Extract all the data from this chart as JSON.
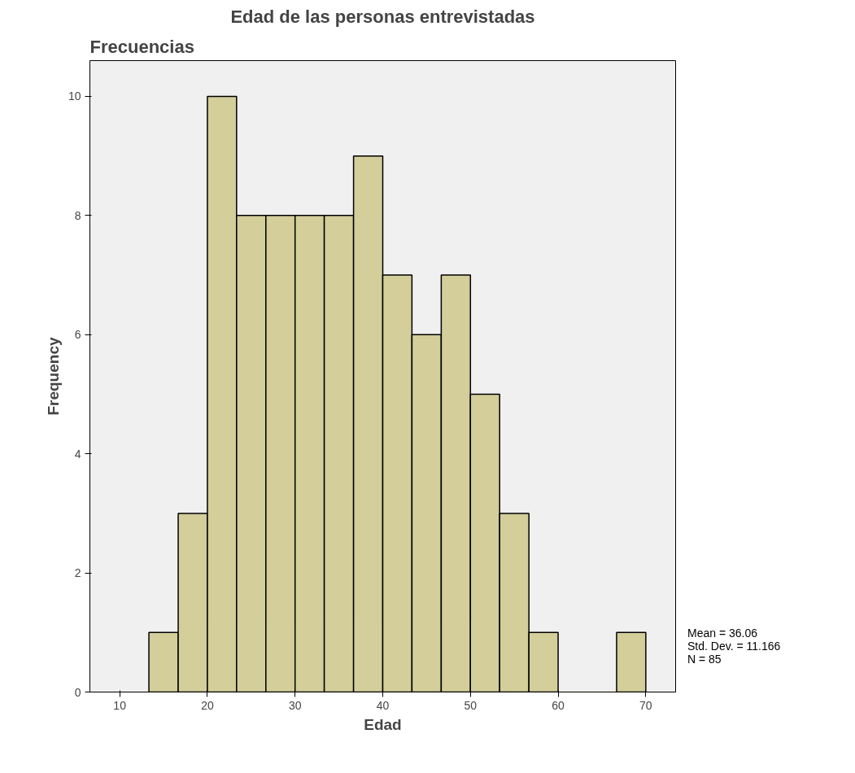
{
  "chart_data": {
    "type": "histogram",
    "title": "Edad de las personas entrevistadas",
    "subtitle": "Frecuencias",
    "xlabel": "Edad",
    "ylabel": "Frequency",
    "bins": [
      13.33,
      16.67,
      20,
      23.33,
      26.67,
      30,
      33.33,
      36.67,
      40,
      43.33,
      46.67,
      50,
      53.33,
      56.67,
      60,
      63.33,
      66.67,
      70
    ],
    "values": [
      1,
      3,
      10,
      8,
      8,
      8,
      8,
      9,
      7,
      6,
      7,
      5,
      3,
      1,
      0,
      0,
      1
    ],
    "color": "#d3ce9a",
    "xlim": [
      6.6,
      73.4
    ],
    "xticks": [
      10,
      20,
      30,
      40,
      50,
      60,
      70
    ],
    "ylim": [
      0,
      10.6
    ],
    "yticks": [
      0,
      2,
      4,
      6,
      8,
      10
    ],
    "grid": false,
    "annotations": [
      "Mean = 36.06",
      "Std. Dev. = 11.166",
      "N = 85"
    ]
  }
}
